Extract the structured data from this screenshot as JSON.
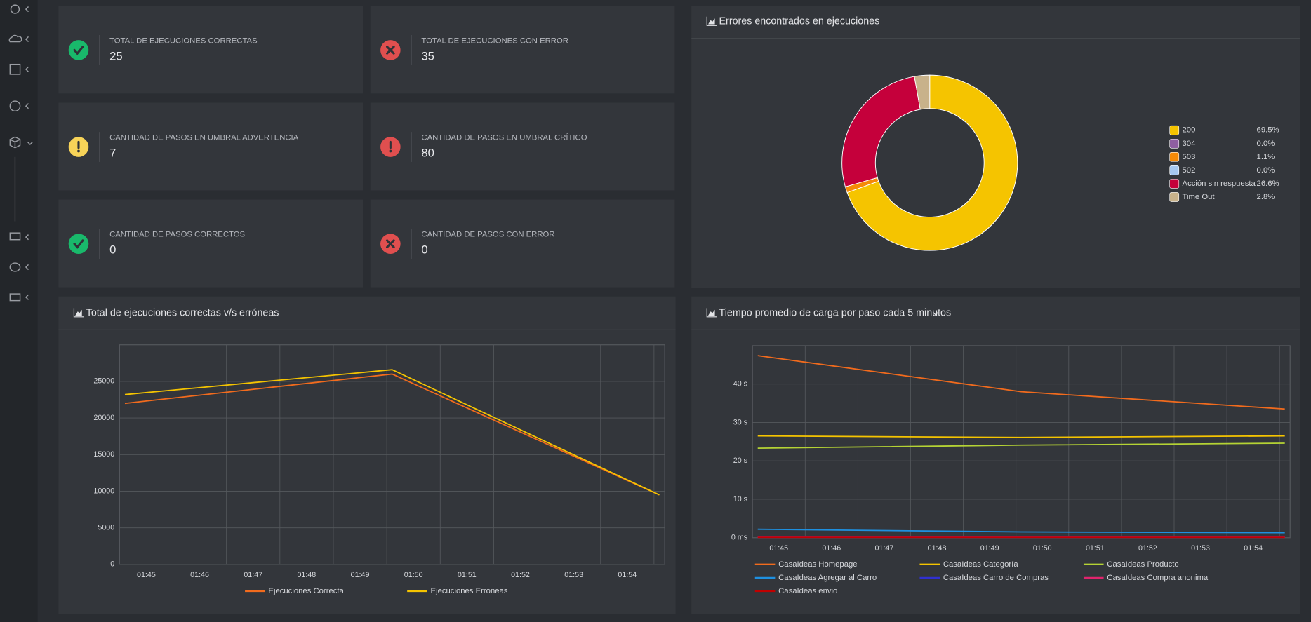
{
  "cards": [
    {
      "label": "TOTAL DE EJECUCIONES CORRECTAS",
      "value": 25,
      "icon": "check",
      "color": "#19b96b"
    },
    {
      "label": "TOTAL DE EJECUCIONES CON ERROR",
      "value": 35,
      "icon": "times",
      "color": "#e04f4f"
    },
    {
      "label": "CANTIDAD DE PASOS EN UMBRAL ADVERTENCIA",
      "value": 7,
      "icon": "exclamation",
      "color": "#f7d358"
    },
    {
      "label": "CANTIDAD DE PASOS EN UMBRAL CRÍTICO",
      "value": 80,
      "icon": "exclamation",
      "color": "#e04f4f"
    },
    {
      "label": "CANTIDAD DE PASOS CORRECTOS",
      "value": 0,
      "icon": "check",
      "color": "#19b96b"
    },
    {
      "label": "CANTIDAD DE PASOS CON ERROR",
      "value": 0,
      "icon": "times",
      "color": "#e04f4f"
    }
  ],
  "chart_data": [
    {
      "type": "doughnut",
      "title": "Errores encontrados en ejecuciones",
      "categories": [
        "200",
        "304",
        "503",
        "502",
        "Acción sin respuesta",
        "Time Out"
      ],
      "values": [
        69.5,
        0.0,
        1.1,
        0.0,
        26.6,
        2.8
      ],
      "value_labels": [
        "69.5%",
        "0.0%",
        "1.1%",
        "0.0%",
        "26.6%",
        "2.8%"
      ],
      "colors": [
        "#f5c400",
        "#8e5ea2",
        "#f58a07",
        "#a6c8f0",
        "#c5003b",
        "#c8b28a"
      ],
      "legend": "right"
    },
    {
      "type": "line",
      "title": "Total de ejecuciones correctas v/s erróneas",
      "x": [
        44.6,
        49.6,
        54.6
      ],
      "xlim": [
        44.5,
        54.7
      ],
      "xticks": [
        {
          "value": 45,
          "label": "01:45"
        },
        {
          "value": 46,
          "label": "01:46"
        },
        {
          "value": 47,
          "label": "01:47"
        },
        {
          "value": 48,
          "label": "01:48"
        },
        {
          "value": 49,
          "label": "01:49"
        },
        {
          "value": 50,
          "label": "01:50"
        },
        {
          "value": 51,
          "label": "01:51"
        },
        {
          "value": 52,
          "label": "01:52"
        },
        {
          "value": 53,
          "label": "01:53"
        },
        {
          "value": 54,
          "label": "01:54"
        }
      ],
      "ylim": [
        0,
        30000
      ],
      "yticks": [
        0,
        5000,
        10000,
        15000,
        20000,
        25000
      ],
      "grid": true,
      "legend": "bottom",
      "series": [
        {
          "name": "Ejecuciones Correcta",
          "color": "#f26b1d",
          "values": [
            22000,
            26000,
            9500
          ]
        },
        {
          "name": "Ejecuciones Erróneas",
          "color": "#f5c400",
          "values": [
            23200,
            26600,
            9500
          ]
        }
      ]
    },
    {
      "type": "line",
      "title": "Tiempo promedio de carga por paso cada 5 minutos",
      "x": [
        44.6,
        49.6,
        54.6
      ],
      "xlim": [
        44.5,
        54.7
      ],
      "xticks": [
        {
          "value": 45,
          "label": "01:45"
        },
        {
          "value": 46,
          "label": "01:46"
        },
        {
          "value": 47,
          "label": "01:47"
        },
        {
          "value": 48,
          "label": "01:48"
        },
        {
          "value": 49,
          "label": "01:49"
        },
        {
          "value": 50,
          "label": "01:50"
        },
        {
          "value": 51,
          "label": "01:51"
        },
        {
          "value": 52,
          "label": "01:52"
        },
        {
          "value": 53,
          "label": "01:53"
        },
        {
          "value": 54,
          "label": "01:54"
        }
      ],
      "ylim": [
        0,
        50
      ],
      "yticks": [
        {
          "value": 0,
          "label": "0 ms"
        },
        {
          "value": 10,
          "label": "10 s"
        },
        {
          "value": 20,
          "label": "20 s"
        },
        {
          "value": 30,
          "label": "30 s"
        },
        {
          "value": 40,
          "label": "40 s"
        }
      ],
      "grid": true,
      "legend": "bottom",
      "series": [
        {
          "name": "CasaIdeas Homepage",
          "color": "#f26b1d",
          "values": [
            47.4,
            38.0,
            33.5
          ]
        },
        {
          "name": "CasaIdeas Categoría",
          "color": "#f5c400",
          "values": [
            26.5,
            26.1,
            26.5
          ]
        },
        {
          "name": "CasaIdeas Producto",
          "color": "#b5d334",
          "values": [
            23.3,
            24.1,
            24.6
          ]
        },
        {
          "name": "CasaIdeas Agregar al Carro",
          "color": "#1e90e0",
          "values": [
            2.2,
            1.5,
            1.3
          ]
        },
        {
          "name": "CasaIdeas Carro de Compras",
          "color": "#3030d0",
          "values": [
            0.2,
            0.2,
            0.2
          ]
        },
        {
          "name": "CasaIdeas Compra anonima",
          "color": "#e0246d",
          "values": [
            0.1,
            0.1,
            0.1
          ]
        },
        {
          "name": "CasaIdeas envio",
          "color": "#c00000",
          "values": [
            0.1,
            0.1,
            0.1
          ]
        }
      ]
    }
  ]
}
